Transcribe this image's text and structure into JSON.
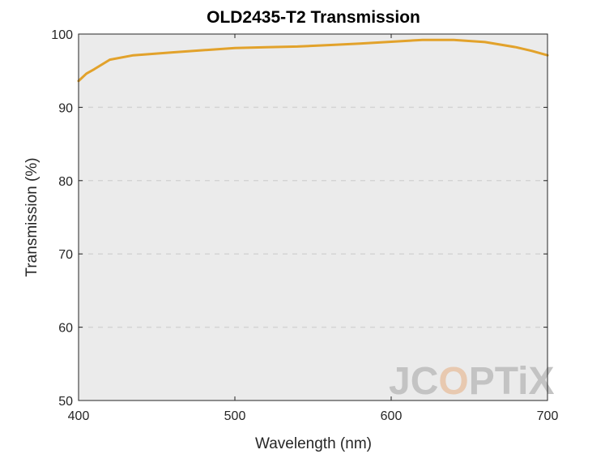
{
  "chart_data": {
    "type": "line",
    "title": "OLD2435-T2 Transmission",
    "xlabel": "Wavelength (nm)",
    "ylabel": "Transmission (%)",
    "xlim": [
      400,
      700
    ],
    "ylim": [
      50,
      100
    ],
    "xticks": [
      "400",
      "500",
      "600",
      "700"
    ],
    "yticks": [
      "50",
      "60",
      "70",
      "80",
      "90",
      "100"
    ],
    "grid": "horizontal dashed",
    "background": "#ebebeb",
    "series": [
      {
        "color": "#e2a22b",
        "x": [
          400,
          405,
          410,
          420,
          435,
          460,
          480,
          500,
          520,
          540,
          560,
          580,
          600,
          620,
          640,
          660,
          680,
          690,
          700
        ],
        "y": [
          93.6,
          94.6,
          95.2,
          96.5,
          97.1,
          97.5,
          97.8,
          98.1,
          98.2,
          98.3,
          98.5,
          98.7,
          98.95,
          99.2,
          99.2,
          98.9,
          98.2,
          97.7,
          97.1
        ]
      }
    ]
  },
  "watermark": {
    "parts": [
      "JC",
      "O",
      "PTiX"
    ],
    "colors": [
      "#c3c3c3",
      "#e8c9b0",
      "#c3c3c3"
    ]
  }
}
